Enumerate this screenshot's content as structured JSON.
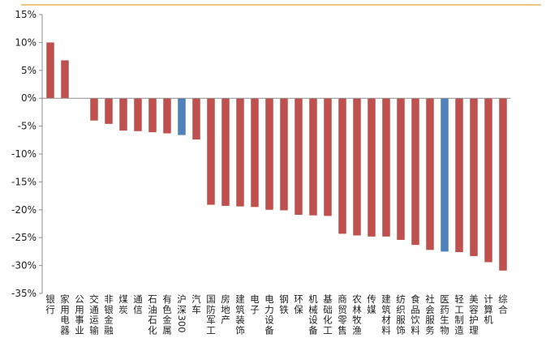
{
  "colors": {
    "top_rule": "#e3a33a",
    "axis": "#8c8c8c",
    "bar_default": "#c0504d",
    "bar_highlight": "#4f81bd"
  },
  "chart_data": {
    "type": "bar",
    "orientation": "vertical",
    "title": "",
    "xlabel": "",
    "ylabel": "",
    "ylim": [
      -35,
      15
    ],
    "y_ticks": [
      15,
      10,
      5,
      0,
      -5,
      -10,
      -15,
      -20,
      -25,
      -30,
      -35
    ],
    "y_tick_labels": [
      "15%",
      "10%",
      "5%",
      "0%",
      "-5%",
      "-10%",
      "-15%",
      "-20%",
      "-25%",
      "-30%",
      "-35%"
    ],
    "grid": false,
    "legend": "none",
    "categories": [
      "银行",
      "家用电器",
      "公用事业",
      "交通运输",
      "非银金融",
      "煤炭",
      "通信",
      "石油石化",
      "有色金属",
      "沪深300",
      "汽车",
      "国防军工",
      "房地产",
      "建筑装饰",
      "电子",
      "电力设备",
      "钢铁",
      "环保",
      "机械设备",
      "基础化工",
      "商贸零售",
      "农林牧渔",
      "传媒",
      "建筑材料",
      "纺织服饰",
      "食品饮料",
      "社会服务",
      "医药生物",
      "轻工制造",
      "美容护理",
      "计算机",
      "综合"
    ],
    "values": [
      10.0,
      6.8,
      0.0,
      -4.0,
      -4.6,
      -5.8,
      -5.9,
      -6.1,
      -6.3,
      -6.6,
      -7.4,
      -19.1,
      -19.3,
      -19.4,
      -19.5,
      -20.0,
      -20.1,
      -20.9,
      -21.0,
      -21.1,
      -24.3,
      -24.6,
      -24.8,
      -24.8,
      -25.4,
      -26.3,
      -27.2,
      -27.5,
      -27.6,
      -28.3,
      -29.4,
      -30.9
    ],
    "highlight_categories": [
      "沪深300",
      "医药生物"
    ]
  }
}
